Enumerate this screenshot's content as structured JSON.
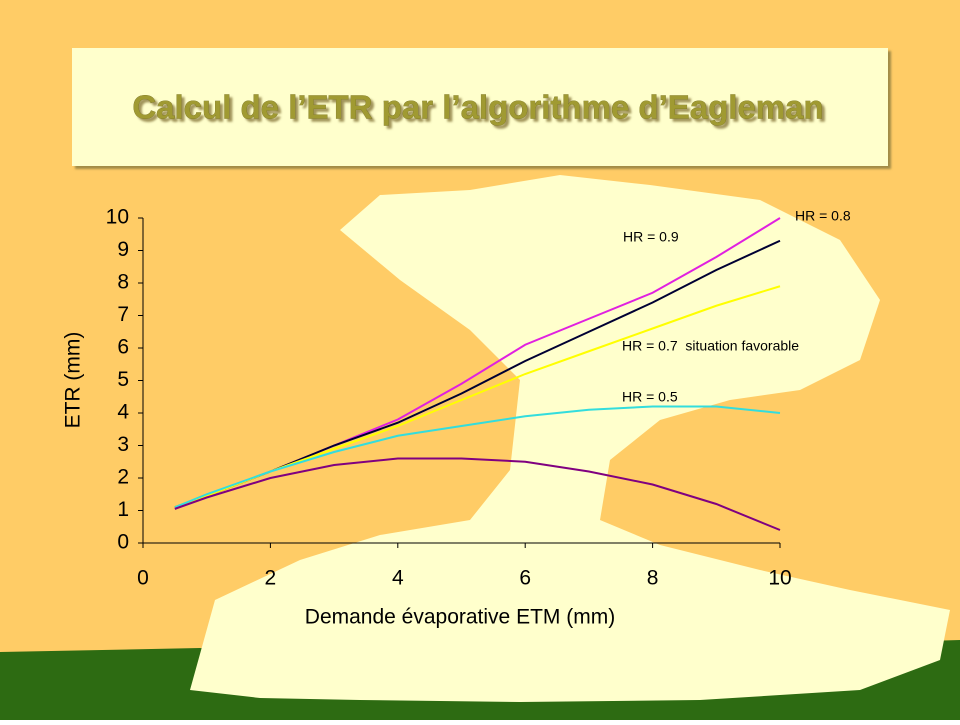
{
  "chart_data": {
    "type": "line",
    "title": "Calcul de l’ETR par l’algorithme d’Eagleman",
    "x_label": "Demande évaporative ETM (mm)",
    "y_label": "ETR (mm)",
    "x": [
      0.5,
      1,
      2,
      3,
      4,
      5,
      6,
      7,
      8,
      9,
      10
    ],
    "series": [
      {
        "name": "HR = 0.8",
        "color": "#e020e0",
        "values": [
          1.05,
          1.45,
          2.2,
          3.0,
          3.8,
          4.9,
          6.1,
          6.9,
          7.7,
          8.8,
          10.0
        ]
      },
      {
        "name": "HR = 0.9",
        "color": "#000033",
        "values": [
          1.1,
          1.45,
          2.2,
          3.0,
          3.7,
          4.6,
          5.6,
          6.5,
          7.4,
          8.4,
          9.3
        ]
      },
      {
        "name": "HR = 0.7  situation favorable",
        "color": "#ffff00",
        "values": [
          1.1,
          1.45,
          2.2,
          2.9,
          3.6,
          4.4,
          5.2,
          5.9,
          6.6,
          7.3,
          7.9
        ]
      },
      {
        "name": "HR = 0.5",
        "color": "#33dddd",
        "values": [
          1.1,
          1.5,
          2.2,
          2.8,
          3.3,
          3.6,
          3.9,
          4.1,
          4.2,
          4.2,
          4.0
        ]
      },
      {
        "color": "#800080",
        "values": [
          1.05,
          1.4,
          2.0,
          2.4,
          2.6,
          2.6,
          2.5,
          2.2,
          1.8,
          1.2,
          0.4
        ]
      }
    ],
    "xlim": [
      0,
      10
    ],
    "xticks": [
      0,
      2,
      4,
      6,
      8,
      10
    ],
    "ylim": [
      0,
      10
    ],
    "yticks": [
      0,
      1,
      2,
      3,
      4,
      5,
      6,
      7,
      8,
      9,
      10
    ]
  }
}
